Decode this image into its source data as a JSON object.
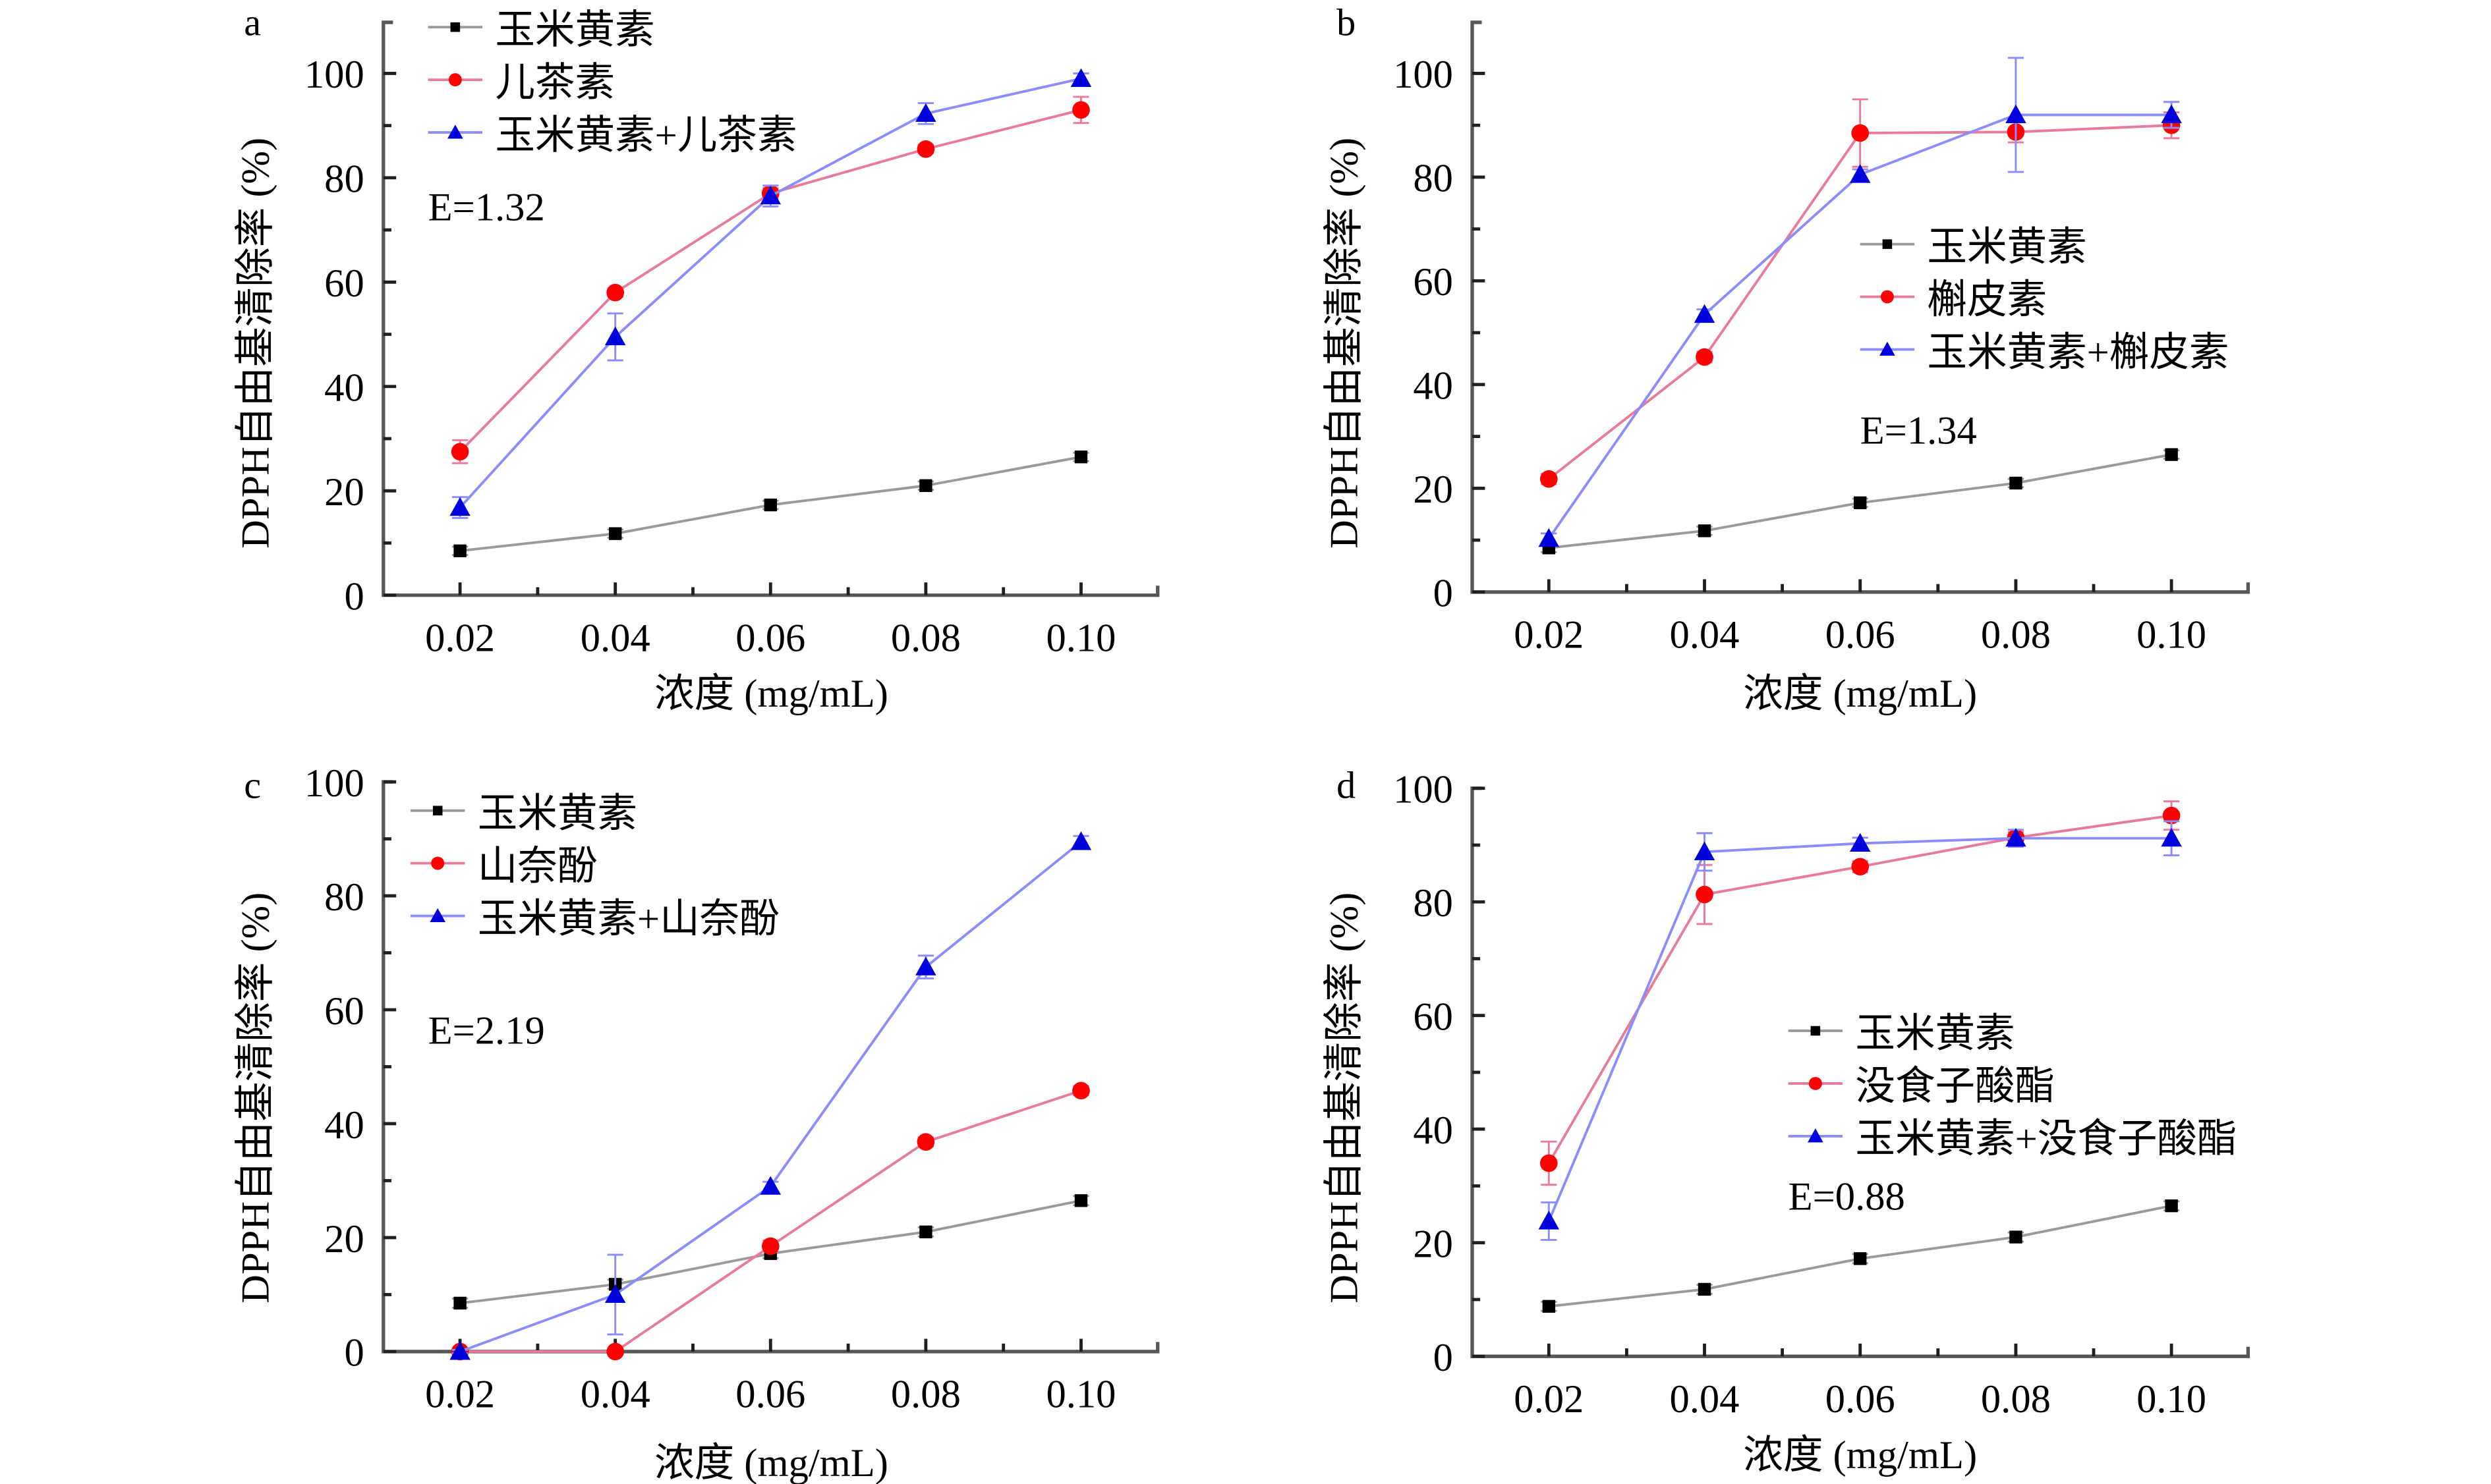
{
  "chart_data": [
    {
      "type": "line",
      "panel_label": "a",
      "xlabel": "浓度 (mg/mL)",
      "ylabel": "DPPH自由基清除率 (%)",
      "categories": [
        "0.02",
        "0.04",
        "0.06",
        "0.08",
        "0.10"
      ],
      "x": [
        0.02,
        0.04,
        0.06,
        0.08,
        0.1
      ],
      "ylim": [
        0,
        110
      ],
      "yticks": [
        0,
        20,
        40,
        60,
        80,
        100
      ],
      "grid": false,
      "legend_position": "top-left",
      "annotation": "E=1.32",
      "series": [
        {
          "name": "玉米黄素",
          "color": "#000000",
          "line_color": "#9a9a9a",
          "marker": "square",
          "values": [
            8.5,
            11.8,
            17.3,
            21.0,
            26.5
          ],
          "errors": [
            0.8,
            0.8,
            0.8,
            0.8,
            0.8
          ]
        },
        {
          "name": "儿茶素",
          "color": "#ff0000",
          "line_color": "#e87a9a",
          "marker": "circle",
          "values": [
            27.5,
            58.0,
            77.0,
            85.5,
            93.0
          ],
          "errors": [
            2.2,
            0.8,
            1.0,
            0.8,
            2.5
          ]
        },
        {
          "name": "玉米黄素+儿茶素",
          "color": "#0000dd",
          "line_color": "#8a8cff",
          "marker": "triangle",
          "values": [
            16.8,
            49.5,
            76.5,
            92.3,
            99.0
          ],
          "errors": [
            2.0,
            4.5,
            2.0,
            2.0,
            1.0
          ]
        }
      ]
    },
    {
      "type": "line",
      "panel_label": "b",
      "xlabel": "浓度 (mg/mL)",
      "ylabel": "DPPH自由基清除率 (%)",
      "categories": [
        "0.02",
        "0.04",
        "0.06",
        "0.08",
        "0.10"
      ],
      "x": [
        0.02,
        0.04,
        0.06,
        0.08,
        0.1
      ],
      "ylim": [
        0,
        110
      ],
      "yticks": [
        0,
        20,
        40,
        60,
        80,
        100
      ],
      "grid": false,
      "legend_position": "center-right",
      "annotation": "E=1.34",
      "series": [
        {
          "name": "玉米黄素",
          "color": "#000000",
          "line_color": "#9a9a9a",
          "marker": "square",
          "values": [
            8.5,
            11.8,
            17.2,
            21.0,
            26.5
          ],
          "errors": [
            0.8,
            0.8,
            0.8,
            0.8,
            0.8
          ]
        },
        {
          "name": "槲皮素",
          "color": "#ff0000",
          "line_color": "#e87a9a",
          "marker": "circle",
          "values": [
            21.8,
            45.3,
            88.5,
            88.7,
            90.0
          ],
          "errors": [
            1.0,
            1.0,
            6.5,
            2.0,
            2.5
          ]
        },
        {
          "name": "玉米黄素+槲皮素",
          "color": "#0000dd",
          "line_color": "#8a8cff",
          "marker": "triangle",
          "values": [
            10.3,
            53.5,
            80.5,
            92.0,
            92.0
          ],
          "errors": [
            1.0,
            1.0,
            1.0,
            11.0,
            2.5
          ]
        }
      ]
    },
    {
      "type": "line",
      "panel_label": "c",
      "xlabel": "浓度 (mg/mL)",
      "ylabel": "DPPH自由基清除率 (%)",
      "categories": [
        "0.02",
        "0.04",
        "0.06",
        "0.08",
        "0.10"
      ],
      "x": [
        0.02,
        0.04,
        0.06,
        0.08,
        0.1
      ],
      "ylim": [
        0,
        100
      ],
      "yticks": [
        0,
        20,
        40,
        60,
        80,
        100
      ],
      "grid": false,
      "legend_position": "top-left",
      "annotation": "E=2.19",
      "series": [
        {
          "name": "玉米黄素",
          "color": "#000000",
          "line_color": "#9a9a9a",
          "marker": "square",
          "values": [
            8.5,
            11.8,
            17.2,
            21.0,
            26.5
          ],
          "errors": [
            0.8,
            0.8,
            0.8,
            0.8,
            0.8
          ]
        },
        {
          "name": "山奈酚",
          "color": "#ff0000",
          "line_color": "#e87a9a",
          "marker": "circle",
          "values": [
            0.0,
            0.0,
            18.5,
            36.8,
            45.8
          ],
          "errors": [
            0.3,
            0.3,
            1.0,
            0.8,
            0.8
          ]
        },
        {
          "name": "玉米黄素+山奈酚",
          "color": "#0000dd",
          "line_color": "#8a8cff",
          "marker": "triangle",
          "values": [
            0.0,
            10.0,
            29.0,
            67.5,
            89.5
          ],
          "errors": [
            0.3,
            7.0,
            0.8,
            2.0,
            1.0
          ]
        }
      ]
    },
    {
      "type": "line",
      "panel_label": "d",
      "xlabel": "浓度 (mg/mL)",
      "ylabel": "DPPH自由基清除率 (%)",
      "categories": [
        "0.02",
        "0.04",
        "0.06",
        "0.08",
        "0.10"
      ],
      "x": [
        0.02,
        0.04,
        0.06,
        0.08,
        0.1
      ],
      "ylim": [
        0,
        100
      ],
      "yticks": [
        0,
        20,
        40,
        60,
        80,
        100
      ],
      "grid": false,
      "legend_position": "center-right",
      "annotation": "E=0.88",
      "series": [
        {
          "name": "玉米黄素",
          "color": "#000000",
          "line_color": "#9a9a9a",
          "marker": "square",
          "values": [
            8.8,
            11.8,
            17.2,
            21.0,
            26.5
          ],
          "errors": [
            0.8,
            0.8,
            0.8,
            0.8,
            0.8
          ]
        },
        {
          "name": "没食子酸酯",
          "color": "#ff0000",
          "line_color": "#e87a9a",
          "marker": "circle",
          "values": [
            34.0,
            81.3,
            86.2,
            91.3,
            95.2
          ],
          "errors": [
            3.8,
            5.2,
            1.0,
            1.0,
            2.5
          ]
        },
        {
          "name": "玉米黄素+没食子酸酯",
          "color": "#0000dd",
          "line_color": "#8a8cff",
          "marker": "triangle",
          "values": [
            23.8,
            88.8,
            90.3,
            91.2,
            91.2
          ],
          "errors": [
            3.3,
            3.3,
            1.0,
            1.5,
            3.0
          ]
        }
      ]
    }
  ]
}
